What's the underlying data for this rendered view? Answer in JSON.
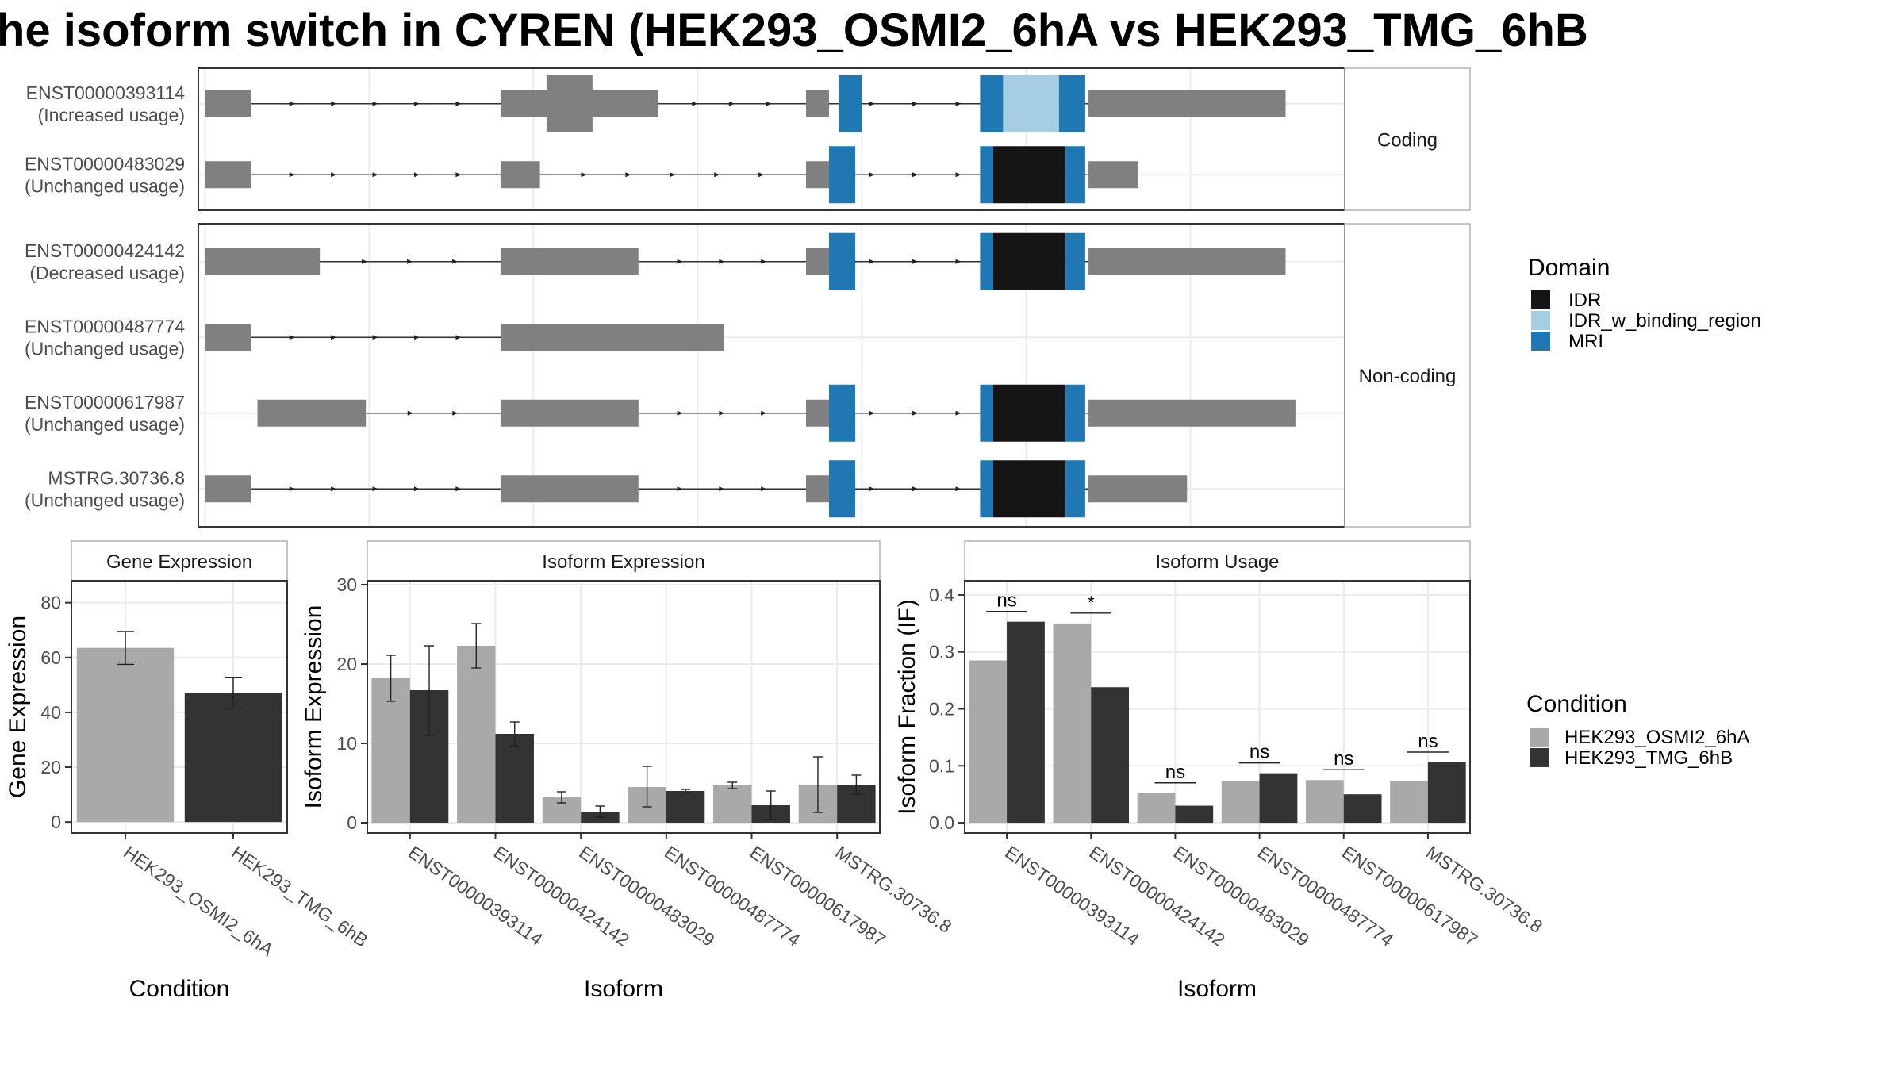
{
  "title": "he isoform switch in CYREN (HEK293_OSMI2_6hA vs HEK293_TMG_6hB",
  "colors": {
    "exon": "#808080",
    "IDR": "#151515",
    "IDR_w_binding_region": "#a6cee3",
    "MRI": "#1f78b4",
    "cond_a": "#a9a9a9",
    "cond_b": "#333333"
  },
  "structure": {
    "facets": [
      {
        "label": "Coding",
        "transcripts": [
          {
            "id": "ENST00000393114",
            "usage": "(Increased usage)",
            "exons": [
              [
                0,
                14
              ],
              [
                90,
                138
              ],
              [
                183,
                190
              ],
              [
                269,
                329
              ]
            ],
            "thick": [
              [
                104,
                118
              ]
            ],
            "domains": [
              {
                "type": "MRI",
                "start": 193,
                "end": 200
              },
              {
                "type": "MRI",
                "start": 236,
                "end": 243
              },
              {
                "type": "IDR_w_binding_region",
                "start": 243,
                "end": 260
              },
              {
                "type": "MRI",
                "start": 260,
                "end": 268
              }
            ]
          },
          {
            "id": "ENST00000483029",
            "usage": "(Unchanged usage)",
            "exons": [
              [
                0,
                14
              ],
              [
                90,
                102
              ],
              [
                183,
                190
              ],
              [
                269,
                284
              ]
            ],
            "thick": [],
            "domains": [
              {
                "type": "MRI",
                "start": 190,
                "end": 198
              },
              {
                "type": "MRI",
                "start": 236,
                "end": 240
              },
              {
                "type": "IDR",
                "start": 240,
                "end": 262
              },
              {
                "type": "MRI",
                "start": 262,
                "end": 268
              }
            ]
          }
        ]
      },
      {
        "label": "Non-coding",
        "transcripts": [
          {
            "id": "ENST00000424142",
            "usage": "(Decreased usage)",
            "exons": [
              [
                0,
                35
              ],
              [
                90,
                132
              ],
              [
                183,
                190
              ],
              [
                269,
                329
              ]
            ],
            "thick": [],
            "domains": [
              {
                "type": "MRI",
                "start": 190,
                "end": 198
              },
              {
                "type": "MRI",
                "start": 236,
                "end": 240
              },
              {
                "type": "IDR",
                "start": 240,
                "end": 262
              },
              {
                "type": "MRI",
                "start": 262,
                "end": 268
              }
            ]
          },
          {
            "id": "ENST00000487774",
            "usage": "(Unchanged usage)",
            "exons": [
              [
                0,
                14
              ],
              [
                90,
                158
              ]
            ],
            "thick": [],
            "domains": []
          },
          {
            "id": "ENST00000617987",
            "usage": "(Unchanged usage)",
            "exons": [
              [
                16,
                49
              ],
              [
                90,
                132
              ],
              [
                183,
                190
              ],
              [
                269,
                332
              ]
            ],
            "thick": [],
            "domains": [
              {
                "type": "MRI",
                "start": 190,
                "end": 198
              },
              {
                "type": "MRI",
                "start": 236,
                "end": 240
              },
              {
                "type": "IDR",
                "start": 240,
                "end": 262
              },
              {
                "type": "MRI",
                "start": 262,
                "end": 268
              }
            ]
          },
          {
            "id": "MSTRG.30736.8",
            "usage": "(Unchanged usage)",
            "exons": [
              [
                0,
                14
              ],
              [
                90,
                132
              ],
              [
                183,
                190
              ],
              [
                269,
                299
              ]
            ],
            "thick": [],
            "domains": [
              {
                "type": "MRI",
                "start": 190,
                "end": 198
              },
              {
                "type": "MRI",
                "start": 236,
                "end": 240
              },
              {
                "type": "IDR",
                "start": 240,
                "end": 262
              },
              {
                "type": "MRI",
                "start": 262,
                "end": 268
              }
            ]
          }
        ]
      }
    ],
    "xlim": [
      -2,
      347
    ]
  },
  "legend_domain": {
    "title": "Domain",
    "items": [
      {
        "key": "IDR",
        "label": "IDR"
      },
      {
        "key": "IDR_w_binding_region",
        "label": "IDR_w_binding_region"
      },
      {
        "key": "MRI",
        "label": "MRI"
      }
    ]
  },
  "legend_condition": {
    "title": "Condition",
    "items": [
      "HEK293_OSMI2_6hA",
      "HEK293_TMG_6hB"
    ]
  },
  "chart_data": [
    {
      "type": "bar",
      "title": "Gene Expression",
      "xlabel": "Condition",
      "ylabel": "Gene Expression",
      "categories": [
        "HEK293_OSMI2_6hA",
        "HEK293_TMG_6hB"
      ],
      "values": [
        63.5,
        47.2
      ],
      "error": [
        [
          57.5,
          69.5
        ],
        [
          41.5,
          52.8
        ]
      ],
      "ylim": [
        -4,
        88
      ],
      "yticks": [
        0,
        20,
        40,
        60,
        80
      ]
    },
    {
      "type": "bar",
      "title": "Isoform Expression",
      "xlabel": "Isoform",
      "ylabel": "Isoform Expression",
      "categories": [
        "ENST00000393114",
        "ENST00000424142",
        "ENST00000483029",
        "ENST00000487774",
        "ENST00000617987",
        "MSTRG.30736.8"
      ],
      "series": [
        {
          "name": "HEK293_OSMI2_6hA",
          "values": [
            18.2,
            22.3,
            3.2,
            4.5,
            4.7,
            4.8
          ],
          "error": [
            [
              15.3,
              21.1
            ],
            [
              19.5,
              25.1
            ],
            [
              2.5,
              3.9
            ],
            [
              2.0,
              7.1
            ],
            [
              4.3,
              5.1
            ],
            [
              1.3,
              8.3
            ]
          ]
        },
        {
          "name": "HEK293_TMG_6hB",
          "values": [
            16.7,
            11.2,
            1.4,
            4.0,
            2.2,
            4.8
          ],
          "error": [
            [
              11.0,
              22.3
            ],
            [
              9.7,
              12.7
            ],
            [
              0.7,
              2.1
            ],
            [
              3.8,
              4.2
            ],
            [
              0.4,
              4.0
            ],
            [
              3.6,
              6.0
            ]
          ]
        }
      ],
      "ylim": [
        -1.3,
        30.5
      ],
      "yticks": [
        0,
        10,
        20,
        30
      ]
    },
    {
      "type": "bar",
      "title": "Isoform Usage",
      "xlabel": "Isoform",
      "ylabel": "Isoform Fraction (IF)",
      "categories": [
        "ENST00000393114",
        "ENST00000424142",
        "ENST00000483029",
        "ENST00000487774",
        "ENST00000617987",
        "MSTRG.30736.8"
      ],
      "series": [
        {
          "name": "HEK293_OSMI2_6hA",
          "values": [
            0.285,
            0.35,
            0.052,
            0.074,
            0.075,
            0.074
          ]
        },
        {
          "name": "HEK293_TMG_6hB",
          "values": [
            0.353,
            0.238,
            0.03,
            0.087,
            0.05,
            0.106
          ]
        }
      ],
      "significance": [
        "ns",
        "*",
        "ns",
        "ns",
        "ns",
        "ns"
      ],
      "ylim": [
        -0.018,
        0.425
      ],
      "yticks": [
        0.0,
        0.1,
        0.2,
        0.3,
        0.4
      ]
    }
  ]
}
